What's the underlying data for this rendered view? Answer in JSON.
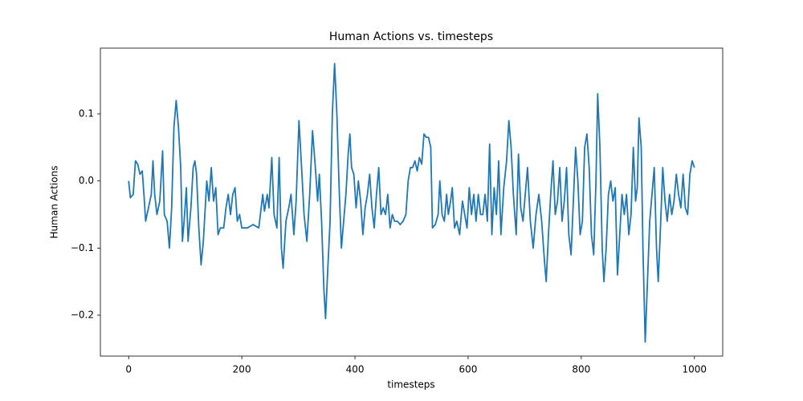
{
  "chart_data": {
    "type": "line",
    "title": "Human Actions vs. timesteps",
    "xlabel": "timesteps",
    "ylabel": "Human Actions",
    "color": "#1f77b4",
    "xlim": [
      -50,
      1050
    ],
    "xticks": [
      0,
      200,
      400,
      600,
      800,
      1000
    ],
    "ylim": [
      -0.261,
      0.198
    ],
    "yticks": [
      {
        "value": -0.2,
        "label": "−0.2"
      },
      {
        "value": -0.1,
        "label": "−0.1"
      },
      {
        "value": 0.0,
        "label": "0.0"
      },
      0.1
    ],
    "x": [
      0,
      3,
      8,
      12,
      16,
      20,
      24,
      27,
      30,
      35,
      40,
      43,
      46,
      50,
      55,
      60,
      63,
      68,
      72,
      76,
      80,
      84,
      88,
      92,
      95,
      98,
      102,
      105,
      110,
      114,
      117,
      120,
      124,
      128,
      132,
      138,
      142,
      146,
      150,
      154,
      158,
      162,
      168,
      172,
      176,
      180,
      184,
      188,
      192,
      196,
      200,
      210,
      220,
      230,
      237,
      240,
      245,
      248,
      253,
      257,
      262,
      266,
      270,
      273,
      278,
      283,
      287,
      292,
      296,
      301,
      305,
      310,
      315,
      320,
      325,
      330,
      334,
      337,
      341,
      345,
      348,
      352,
      356,
      360,
      364,
      368,
      372,
      376,
      380,
      384,
      388,
      391,
      394,
      398,
      402,
      406,
      410,
      414,
      418,
      422,
      426,
      430,
      434,
      438,
      442,
      446,
      450,
      454,
      458,
      462,
      466,
      470,
      475,
      480,
      485,
      490,
      494,
      498,
      502,
      506,
      510,
      514,
      518,
      522,
      526,
      530,
      534,
      537,
      542,
      547,
      550,
      554,
      558,
      562,
      565,
      569,
      572,
      576,
      580,
      585,
      590,
      594,
      598,
      602,
      606,
      610,
      614,
      618,
      622,
      626,
      630,
      634,
      638,
      642,
      646,
      650,
      654,
      658,
      663,
      668,
      672,
      676,
      680,
      685,
      689,
      693,
      697,
      700,
      705,
      710,
      715,
      720,
      725,
      730,
      735,
      738,
      742,
      746,
      750,
      754,
      758,
      762,
      766,
      770,
      774,
      778,
      782,
      786,
      790,
      794,
      798,
      802,
      806,
      810,
      814,
      818,
      822,
      826,
      829,
      833,
      837,
      840,
      844,
      848,
      852,
      856,
      860,
      864,
      868,
      872,
      876,
      880,
      884,
      888,
      892,
      896,
      899,
      902,
      906,
      909,
      913,
      917,
      921,
      925,
      929,
      933,
      936,
      940,
      944,
      948,
      952,
      956,
      960,
      964,
      968,
      972,
      976,
      980,
      984,
      988,
      992,
      996,
      1000
    ],
    "values": [
      0.0,
      -0.025,
      -0.02,
      0.03,
      0.025,
      0.01,
      0.015,
      -0.02,
      -0.06,
      -0.04,
      -0.02,
      0.03,
      -0.02,
      -0.05,
      -0.03,
      0.045,
      -0.05,
      -0.06,
      -0.1,
      -0.04,
      0.08,
      0.12,
      0.08,
      0.02,
      -0.09,
      -0.06,
      -0.01,
      -0.09,
      -0.04,
      0.02,
      0.03,
      0.01,
      -0.07,
      -0.125,
      -0.09,
      0.0,
      -0.03,
      0.02,
      -0.03,
      -0.01,
      -0.08,
      -0.07,
      -0.07,
      -0.04,
      -0.02,
      -0.05,
      -0.02,
      -0.01,
      -0.06,
      -0.05,
      -0.07,
      -0.07,
      -0.065,
      -0.07,
      -0.02,
      -0.045,
      -0.02,
      -0.04,
      0.035,
      -0.05,
      -0.07,
      0.035,
      -0.1,
      -0.13,
      -0.06,
      -0.04,
      -0.02,
      -0.08,
      -0.03,
      0.09,
      0.03,
      -0.05,
      -0.09,
      -0.02,
      0.075,
      0.02,
      -0.03,
      0.01,
      -0.06,
      -0.16,
      -0.205,
      -0.13,
      -0.06,
      0.1,
      0.175,
      0.1,
      -0.01,
      -0.1,
      -0.06,
      -0.02,
      0.04,
      0.07,
      0.02,
      0.01,
      -0.04,
      0.0,
      -0.03,
      -0.08,
      -0.04,
      -0.02,
      0.01,
      -0.04,
      -0.07,
      -0.02,
      0.02,
      -0.05,
      -0.04,
      -0.05,
      -0.02,
      -0.07,
      -0.05,
      -0.06,
      -0.06,
      -0.065,
      -0.06,
      -0.05,
      0.0,
      0.02,
      0.02,
      0.03,
      0.015,
      0.035,
      0.025,
      0.07,
      0.065,
      0.065,
      0.05,
      -0.07,
      -0.065,
      -0.05,
      0.0,
      -0.05,
      -0.06,
      -0.02,
      -0.05,
      -0.03,
      -0.01,
      -0.07,
      -0.06,
      -0.08,
      -0.03,
      -0.05,
      -0.07,
      -0.01,
      -0.05,
      -0.02,
      -0.06,
      -0.02,
      -0.05,
      -0.05,
      -0.02,
      -0.06,
      0.055,
      -0.08,
      -0.01,
      -0.05,
      0.03,
      -0.08,
      -0.01,
      0.03,
      0.09,
      0.05,
      -0.02,
      -0.08,
      0.04,
      -0.04,
      -0.06,
      -0.03,
      0.02,
      -0.06,
      -0.1,
      -0.05,
      -0.02,
      -0.06,
      -0.12,
      -0.15,
      -0.08,
      -0.02,
      0.03,
      -0.05,
      -0.03,
      0.02,
      -0.06,
      -0.03,
      0.02,
      -0.08,
      -0.11,
      -0.03,
      0.05,
      0.0,
      -0.08,
      -0.06,
      0.05,
      0.07,
      0.02,
      -0.08,
      -0.11,
      0.0,
      0.13,
      0.05,
      -0.1,
      -0.15,
      -0.1,
      -0.02,
      0.0,
      -0.03,
      -0.01,
      -0.14,
      -0.08,
      -0.02,
      -0.05,
      -0.02,
      -0.08,
      -0.05,
      0.05,
      -0.03,
      -0.01,
      0.094,
      0.05,
      -0.1,
      -0.24,
      -0.15,
      -0.06,
      -0.02,
      0.02,
      -0.1,
      -0.15,
      -0.07,
      0.02,
      -0.03,
      -0.06,
      -0.02,
      -0.05,
      -0.03,
      0.01,
      -0.02,
      -0.04,
      0.01,
      -0.04,
      -0.05,
      0.01,
      0.03,
      0.02
    ]
  }
}
